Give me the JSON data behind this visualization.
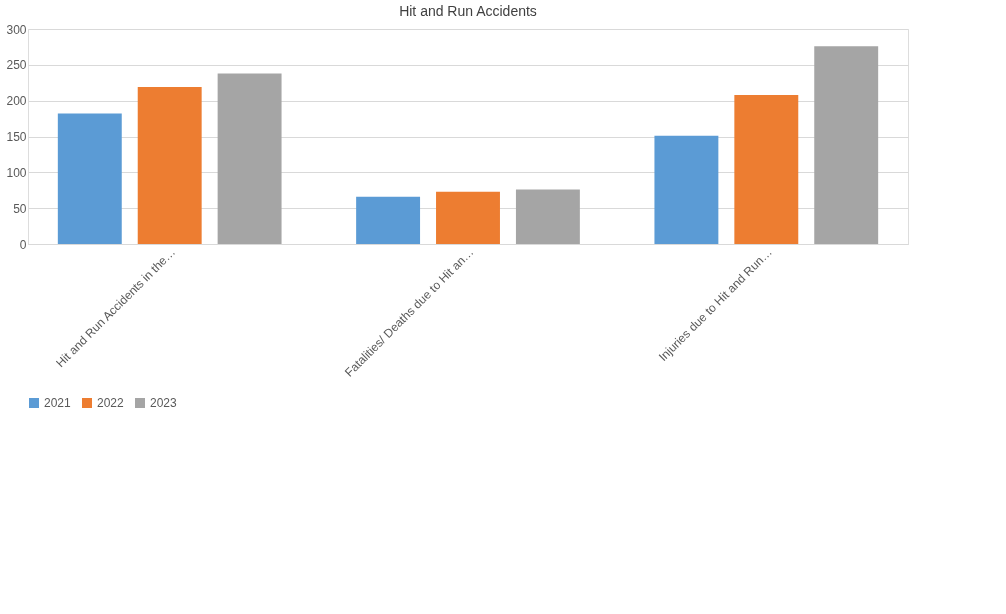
{
  "chart_data": {
    "type": "bar",
    "title": "Hit and Run Accidents",
    "categories": [
      "Hit and Run Accidents in the…",
      "Fatalities/ Deaths due to Hit an…",
      "Injuries due to Hit and Run…"
    ],
    "series": [
      {
        "name": "2021",
        "color": "#5b9bd5",
        "values": [
          182,
          66,
          151
        ]
      },
      {
        "name": "2022",
        "color": "#ed7d31",
        "values": [
          219,
          73,
          208
        ]
      },
      {
        "name": "2023",
        "color": "#a5a5a5",
        "values": [
          238,
          76,
          276
        ]
      }
    ],
    "ylim": [
      0,
      300
    ],
    "yticks": [
      0,
      50,
      100,
      150,
      200,
      250,
      300
    ],
    "grid": "y",
    "legend": "bottom"
  }
}
